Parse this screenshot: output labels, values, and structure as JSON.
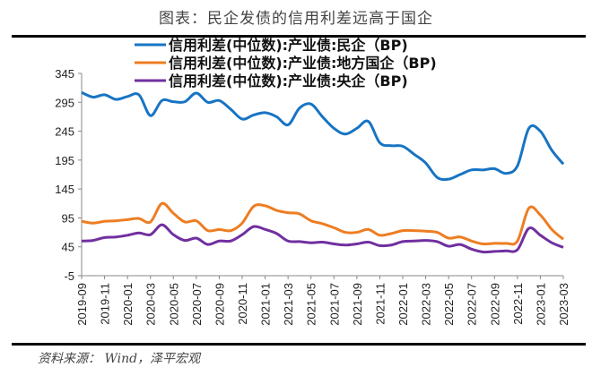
{
  "title": "图表：民企发债的信用利差远高于国企",
  "source": "资料来源： Wind，泽平宏观",
  "chart_data": {
    "type": "line",
    "title": "",
    "xlabel": "",
    "ylabel": "",
    "ylim": [
      -5,
      345
    ],
    "yticks": [
      -5,
      45,
      95,
      145,
      195,
      245,
      295,
      345
    ],
    "grid": false,
    "legend_position": "top",
    "x": [
      "2019-09",
      "2019-10",
      "2019-11",
      "2019-12",
      "2020-01",
      "2020-02",
      "2020-03",
      "2020-04",
      "2020-05",
      "2020-06",
      "2020-07",
      "2020-08",
      "2020-09",
      "2020-10",
      "2020-11",
      "2020-12",
      "2021-01",
      "2021-02",
      "2021-03",
      "2021-04",
      "2021-05",
      "2021-06",
      "2021-07",
      "2021-08",
      "2021-09",
      "2021-10",
      "2021-11",
      "2021-12",
      "2022-01",
      "2022-02",
      "2022-03",
      "2022-04",
      "2022-05",
      "2022-06",
      "2022-07",
      "2022-08",
      "2022-09",
      "2022-10",
      "2022-11",
      "2022-12",
      "2023-01",
      "2023-02",
      "2023-03"
    ],
    "xtick_labels": [
      "2019-09",
      "2019-11",
      "2020-01",
      "2020-03",
      "2020-05",
      "2020-07",
      "2020-09",
      "2020-11",
      "2021-01",
      "2021-03",
      "2021-05",
      "2021-07",
      "2021-09",
      "2021-11",
      "2022-01",
      "2022-03",
      "2022-05",
      "2022-07",
      "2022-09",
      "2022-11",
      "2023-01",
      "2023-03"
    ],
    "series": [
      {
        "name": "信用利差(中位数):产业债:民企（BP)",
        "color": "#1874c3",
        "values": [
          312,
          304,
          308,
          300,
          305,
          308,
          272,
          298,
          296,
          296,
          311,
          295,
          298,
          283,
          266,
          273,
          277,
          270,
          256,
          285,
          292,
          270,
          250,
          240,
          250,
          262,
          225,
          220,
          219,
          205,
          190,
          165,
          162,
          170,
          178,
          178,
          180,
          172,
          185,
          250,
          245,
          212,
          188
        ]
      },
      {
        "name": "信用利差(中位数):产业债:地方国企（BP)",
        "color": "#ed7d22",
        "values": [
          89,
          86,
          89,
          90,
          92,
          94,
          88,
          120,
          103,
          88,
          90,
          73,
          75,
          73,
          86,
          115,
          116,
          108,
          104,
          102,
          90,
          85,
          78,
          70,
          70,
          75,
          65,
          68,
          73,
          73,
          72,
          70,
          60,
          62,
          55,
          50,
          51,
          51,
          55,
          112,
          100,
          75,
          58
        ]
      },
      {
        "name": "信用利差(中位数):产业债:央企（BP)",
        "color": "#7030a0",
        "values": [
          55,
          56,
          61,
          62,
          65,
          69,
          66,
          83,
          66,
          56,
          60,
          49,
          55,
          55,
          66,
          80,
          75,
          68,
          55,
          54,
          52,
          53,
          50,
          48,
          50,
          53,
          47,
          48,
          54,
          55,
          56,
          54,
          46,
          49,
          41,
          36,
          37,
          38,
          40,
          77,
          65,
          52,
          44
        ]
      }
    ]
  }
}
